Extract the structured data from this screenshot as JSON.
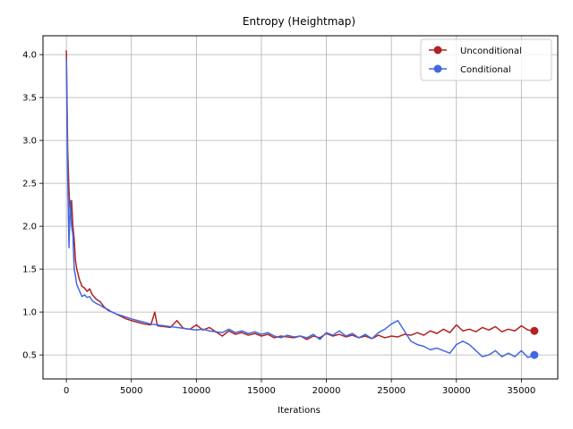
{
  "chart_data": {
    "type": "line",
    "title": "Entropy (Heightmap)",
    "xlabel": "Iterations",
    "ylabel": "",
    "xlim": [
      -1800,
      37800
    ],
    "ylim": [
      0.22,
      4.22
    ],
    "xticks": [
      0,
      5000,
      10000,
      15000,
      20000,
      25000,
      30000,
      35000
    ],
    "yticks": [
      0.5,
      1.0,
      1.5,
      2.0,
      2.5,
      3.0,
      3.5,
      4.0
    ],
    "xtick_labels": [
      "0",
      "5000",
      "10000",
      "15000",
      "20000",
      "25000",
      "30000",
      "35000"
    ],
    "ytick_labels": [
      "0.5",
      "1.0",
      "1.5",
      "2.0",
      "2.5",
      "3.0",
      "3.5",
      "4.0"
    ],
    "grid": true,
    "legend_position": "top-right",
    "series": [
      {
        "name": "Unconditional",
        "color": "#b22222",
        "last_point": [
          36000,
          0.78
        ],
        "points": [
          [
            0,
            4.05
          ],
          [
            100,
            2.9
          ],
          [
            200,
            2.42
          ],
          [
            300,
            2.1
          ],
          [
            400,
            2.3
          ],
          [
            500,
            2.0
          ],
          [
            600,
            1.85
          ],
          [
            700,
            1.6
          ],
          [
            800,
            1.5
          ],
          [
            1000,
            1.38
          ],
          [
            1200,
            1.3
          ],
          [
            1400,
            1.28
          ],
          [
            1600,
            1.24
          ],
          [
            1800,
            1.27
          ],
          [
            2000,
            1.2
          ],
          [
            2300,
            1.15
          ],
          [
            2600,
            1.12
          ],
          [
            2900,
            1.06
          ],
          [
            3200,
            1.02
          ],
          [
            3500,
            1.0
          ],
          [
            3800,
            0.98
          ],
          [
            4200,
            0.95
          ],
          [
            4600,
            0.92
          ],
          [
            5000,
            0.9
          ],
          [
            5500,
            0.88
          ],
          [
            6000,
            0.86
          ],
          [
            6500,
            0.85
          ],
          [
            6800,
            1.0
          ],
          [
            7000,
            0.84
          ],
          [
            7500,
            0.83
          ],
          [
            8000,
            0.82
          ],
          [
            8500,
            0.9
          ],
          [
            9000,
            0.81
          ],
          [
            9500,
            0.8
          ],
          [
            10000,
            0.85
          ],
          [
            10500,
            0.79
          ],
          [
            11000,
            0.82
          ],
          [
            11500,
            0.77
          ],
          [
            12000,
            0.72
          ],
          [
            12500,
            0.78
          ],
          [
            13000,
            0.74
          ],
          [
            13500,
            0.76
          ],
          [
            14000,
            0.73
          ],
          [
            14500,
            0.75
          ],
          [
            15000,
            0.72
          ],
          [
            15500,
            0.74
          ],
          [
            16000,
            0.7
          ],
          [
            16500,
            0.72
          ],
          [
            17000,
            0.71
          ],
          [
            17500,
            0.7
          ],
          [
            18000,
            0.72
          ],
          [
            18500,
            0.68
          ],
          [
            19000,
            0.72
          ],
          [
            19500,
            0.7
          ],
          [
            20000,
            0.75
          ],
          [
            20500,
            0.72
          ],
          [
            21000,
            0.74
          ],
          [
            21500,
            0.71
          ],
          [
            22000,
            0.73
          ],
          [
            22500,
            0.7
          ],
          [
            23000,
            0.72
          ],
          [
            23500,
            0.69
          ],
          [
            24000,
            0.73
          ],
          [
            24500,
            0.7
          ],
          [
            25000,
            0.72
          ],
          [
            25500,
            0.71
          ],
          [
            26000,
            0.74
          ],
          [
            26500,
            0.73
          ],
          [
            27000,
            0.76
          ],
          [
            27500,
            0.73
          ],
          [
            28000,
            0.78
          ],
          [
            28500,
            0.75
          ],
          [
            29000,
            0.8
          ],
          [
            29500,
            0.76
          ],
          [
            30000,
            0.85
          ],
          [
            30500,
            0.78
          ],
          [
            31000,
            0.8
          ],
          [
            31500,
            0.77
          ],
          [
            32000,
            0.82
          ],
          [
            32500,
            0.79
          ],
          [
            33000,
            0.83
          ],
          [
            33500,
            0.77
          ],
          [
            34000,
            0.8
          ],
          [
            34500,
            0.78
          ],
          [
            35000,
            0.84
          ],
          [
            35500,
            0.79
          ],
          [
            36000,
            0.78
          ]
        ]
      },
      {
        "name": "Conditional",
        "color": "#4169e1",
        "last_point": [
          36000,
          0.5
        ],
        "points": [
          [
            0,
            3.95
          ],
          [
            100,
            2.6
          ],
          [
            200,
            1.75
          ],
          [
            300,
            2.3
          ],
          [
            400,
            2.0
          ],
          [
            500,
            1.9
          ],
          [
            600,
            1.5
          ],
          [
            700,
            1.42
          ],
          [
            800,
            1.32
          ],
          [
            1000,
            1.25
          ],
          [
            1200,
            1.18
          ],
          [
            1400,
            1.2
          ],
          [
            1600,
            1.17
          ],
          [
            1800,
            1.18
          ],
          [
            2000,
            1.13
          ],
          [
            2300,
            1.1
          ],
          [
            2600,
            1.08
          ],
          [
            2900,
            1.05
          ],
          [
            3200,
            1.03
          ],
          [
            3500,
            1.0
          ],
          [
            3800,
            0.98
          ],
          [
            4200,
            0.96
          ],
          [
            4600,
            0.94
          ],
          [
            5000,
            0.92
          ],
          [
            5500,
            0.9
          ],
          [
            6000,
            0.88
          ],
          [
            6500,
            0.86
          ],
          [
            7000,
            0.85
          ],
          [
            7500,
            0.84
          ],
          [
            8000,
            0.83
          ],
          [
            8500,
            0.82
          ],
          [
            9000,
            0.81
          ],
          [
            9500,
            0.8
          ],
          [
            10000,
            0.79
          ],
          [
            10500,
            0.8
          ],
          [
            11000,
            0.78
          ],
          [
            11500,
            0.77
          ],
          [
            12000,
            0.76
          ],
          [
            12500,
            0.8
          ],
          [
            13000,
            0.76
          ],
          [
            13500,
            0.78
          ],
          [
            14000,
            0.75
          ],
          [
            14500,
            0.77
          ],
          [
            15000,
            0.74
          ],
          [
            15500,
            0.76
          ],
          [
            16000,
            0.72
          ],
          [
            16500,
            0.7
          ],
          [
            17000,
            0.73
          ],
          [
            17500,
            0.71
          ],
          [
            18000,
            0.72
          ],
          [
            18500,
            0.7
          ],
          [
            19000,
            0.74
          ],
          [
            19500,
            0.68
          ],
          [
            20000,
            0.76
          ],
          [
            20500,
            0.73
          ],
          [
            21000,
            0.78
          ],
          [
            21500,
            0.72
          ],
          [
            22000,
            0.75
          ],
          [
            22500,
            0.7
          ],
          [
            23000,
            0.74
          ],
          [
            23500,
            0.69
          ],
          [
            24000,
            0.76
          ],
          [
            24500,
            0.8
          ],
          [
            25000,
            0.86
          ],
          [
            25500,
            0.9
          ],
          [
            26000,
            0.78
          ],
          [
            26500,
            0.66
          ],
          [
            27000,
            0.62
          ],
          [
            27500,
            0.6
          ],
          [
            28000,
            0.56
          ],
          [
            28500,
            0.58
          ],
          [
            29000,
            0.55
          ],
          [
            29500,
            0.52
          ],
          [
            30000,
            0.62
          ],
          [
            30500,
            0.66
          ],
          [
            31000,
            0.62
          ],
          [
            31500,
            0.55
          ],
          [
            32000,
            0.48
          ],
          [
            32500,
            0.5
          ],
          [
            33000,
            0.55
          ],
          [
            33500,
            0.48
          ],
          [
            34000,
            0.52
          ],
          [
            34500,
            0.48
          ],
          [
            35000,
            0.55
          ],
          [
            35500,
            0.47
          ],
          [
            36000,
            0.5
          ]
        ]
      }
    ]
  }
}
